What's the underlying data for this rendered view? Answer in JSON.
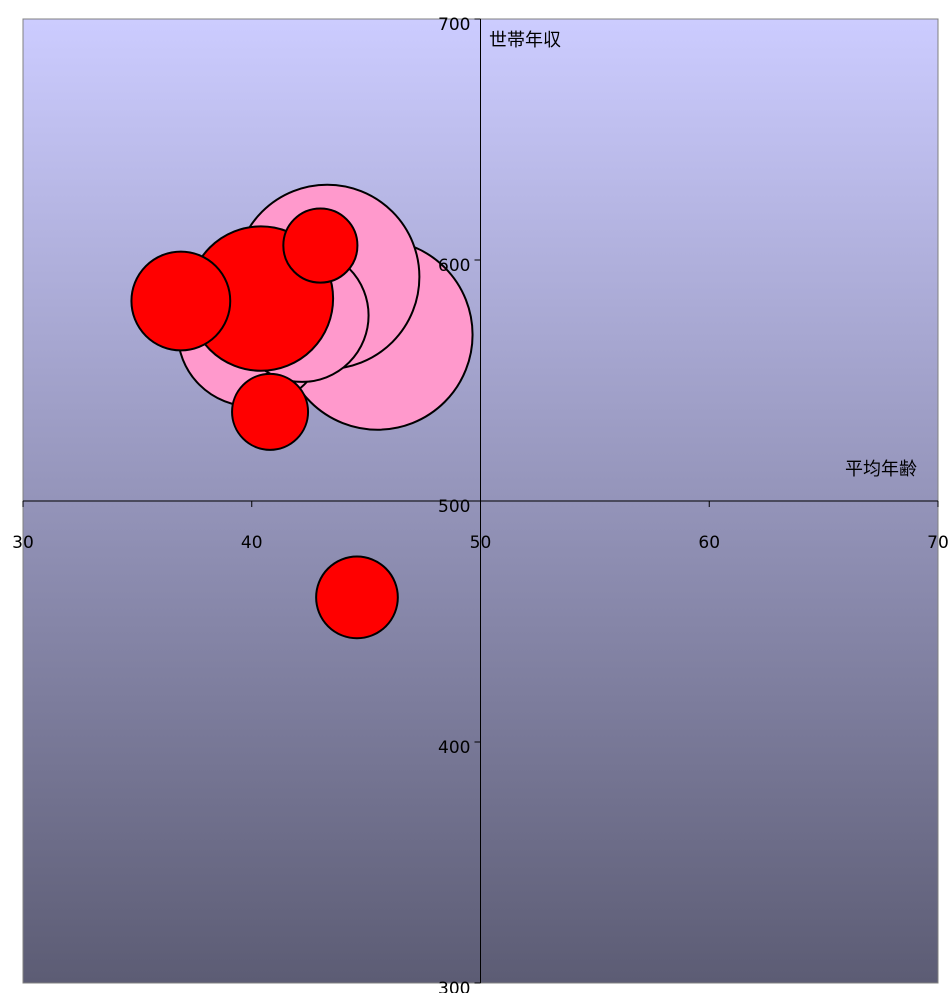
{
  "chart_data": {
    "type": "bubble",
    "title": "",
    "xlabel": "平均年齢",
    "ylabel": "世帯年収",
    "xlim": [
      30,
      70
    ],
    "ylim": [
      300,
      700
    ],
    "x_ticks": [
      30,
      40,
      50,
      60,
      70
    ],
    "y_ticks": [
      300,
      400,
      500,
      600,
      700
    ],
    "x_tick_labels": [
      "30",
      "40",
      "50",
      "60",
      "70"
    ],
    "y_tick_labels": [
      "300",
      "400",
      "500",
      "600",
      "700"
    ],
    "crosshair": {
      "x": 50,
      "y": 500
    },
    "background": {
      "top_color": "#ccccff",
      "bottom_color": "#5c5c74"
    },
    "series": [
      {
        "color": "#ff99cc",
        "points": [
          {
            "x": 45.5,
            "y": 569,
            "size": 1.0
          },
          {
            "x": 43.3,
            "y": 593,
            "size": 0.97
          },
          {
            "x": 40.0,
            "y": 570,
            "size": 0.78
          },
          {
            "x": 42.2,
            "y": 577,
            "size": 0.7
          }
        ]
      },
      {
        "color": "#ff0000",
        "points": [
          {
            "x": 40.4,
            "y": 584,
            "size": 0.76
          },
          {
            "x": 36.9,
            "y": 583,
            "size": 0.52
          },
          {
            "x": 43.0,
            "y": 606,
            "size": 0.39
          },
          {
            "x": 40.8,
            "y": 537,
            "size": 0.4
          },
          {
            "x": 44.6,
            "y": 460,
            "size": 0.43
          }
        ]
      }
    ]
  }
}
